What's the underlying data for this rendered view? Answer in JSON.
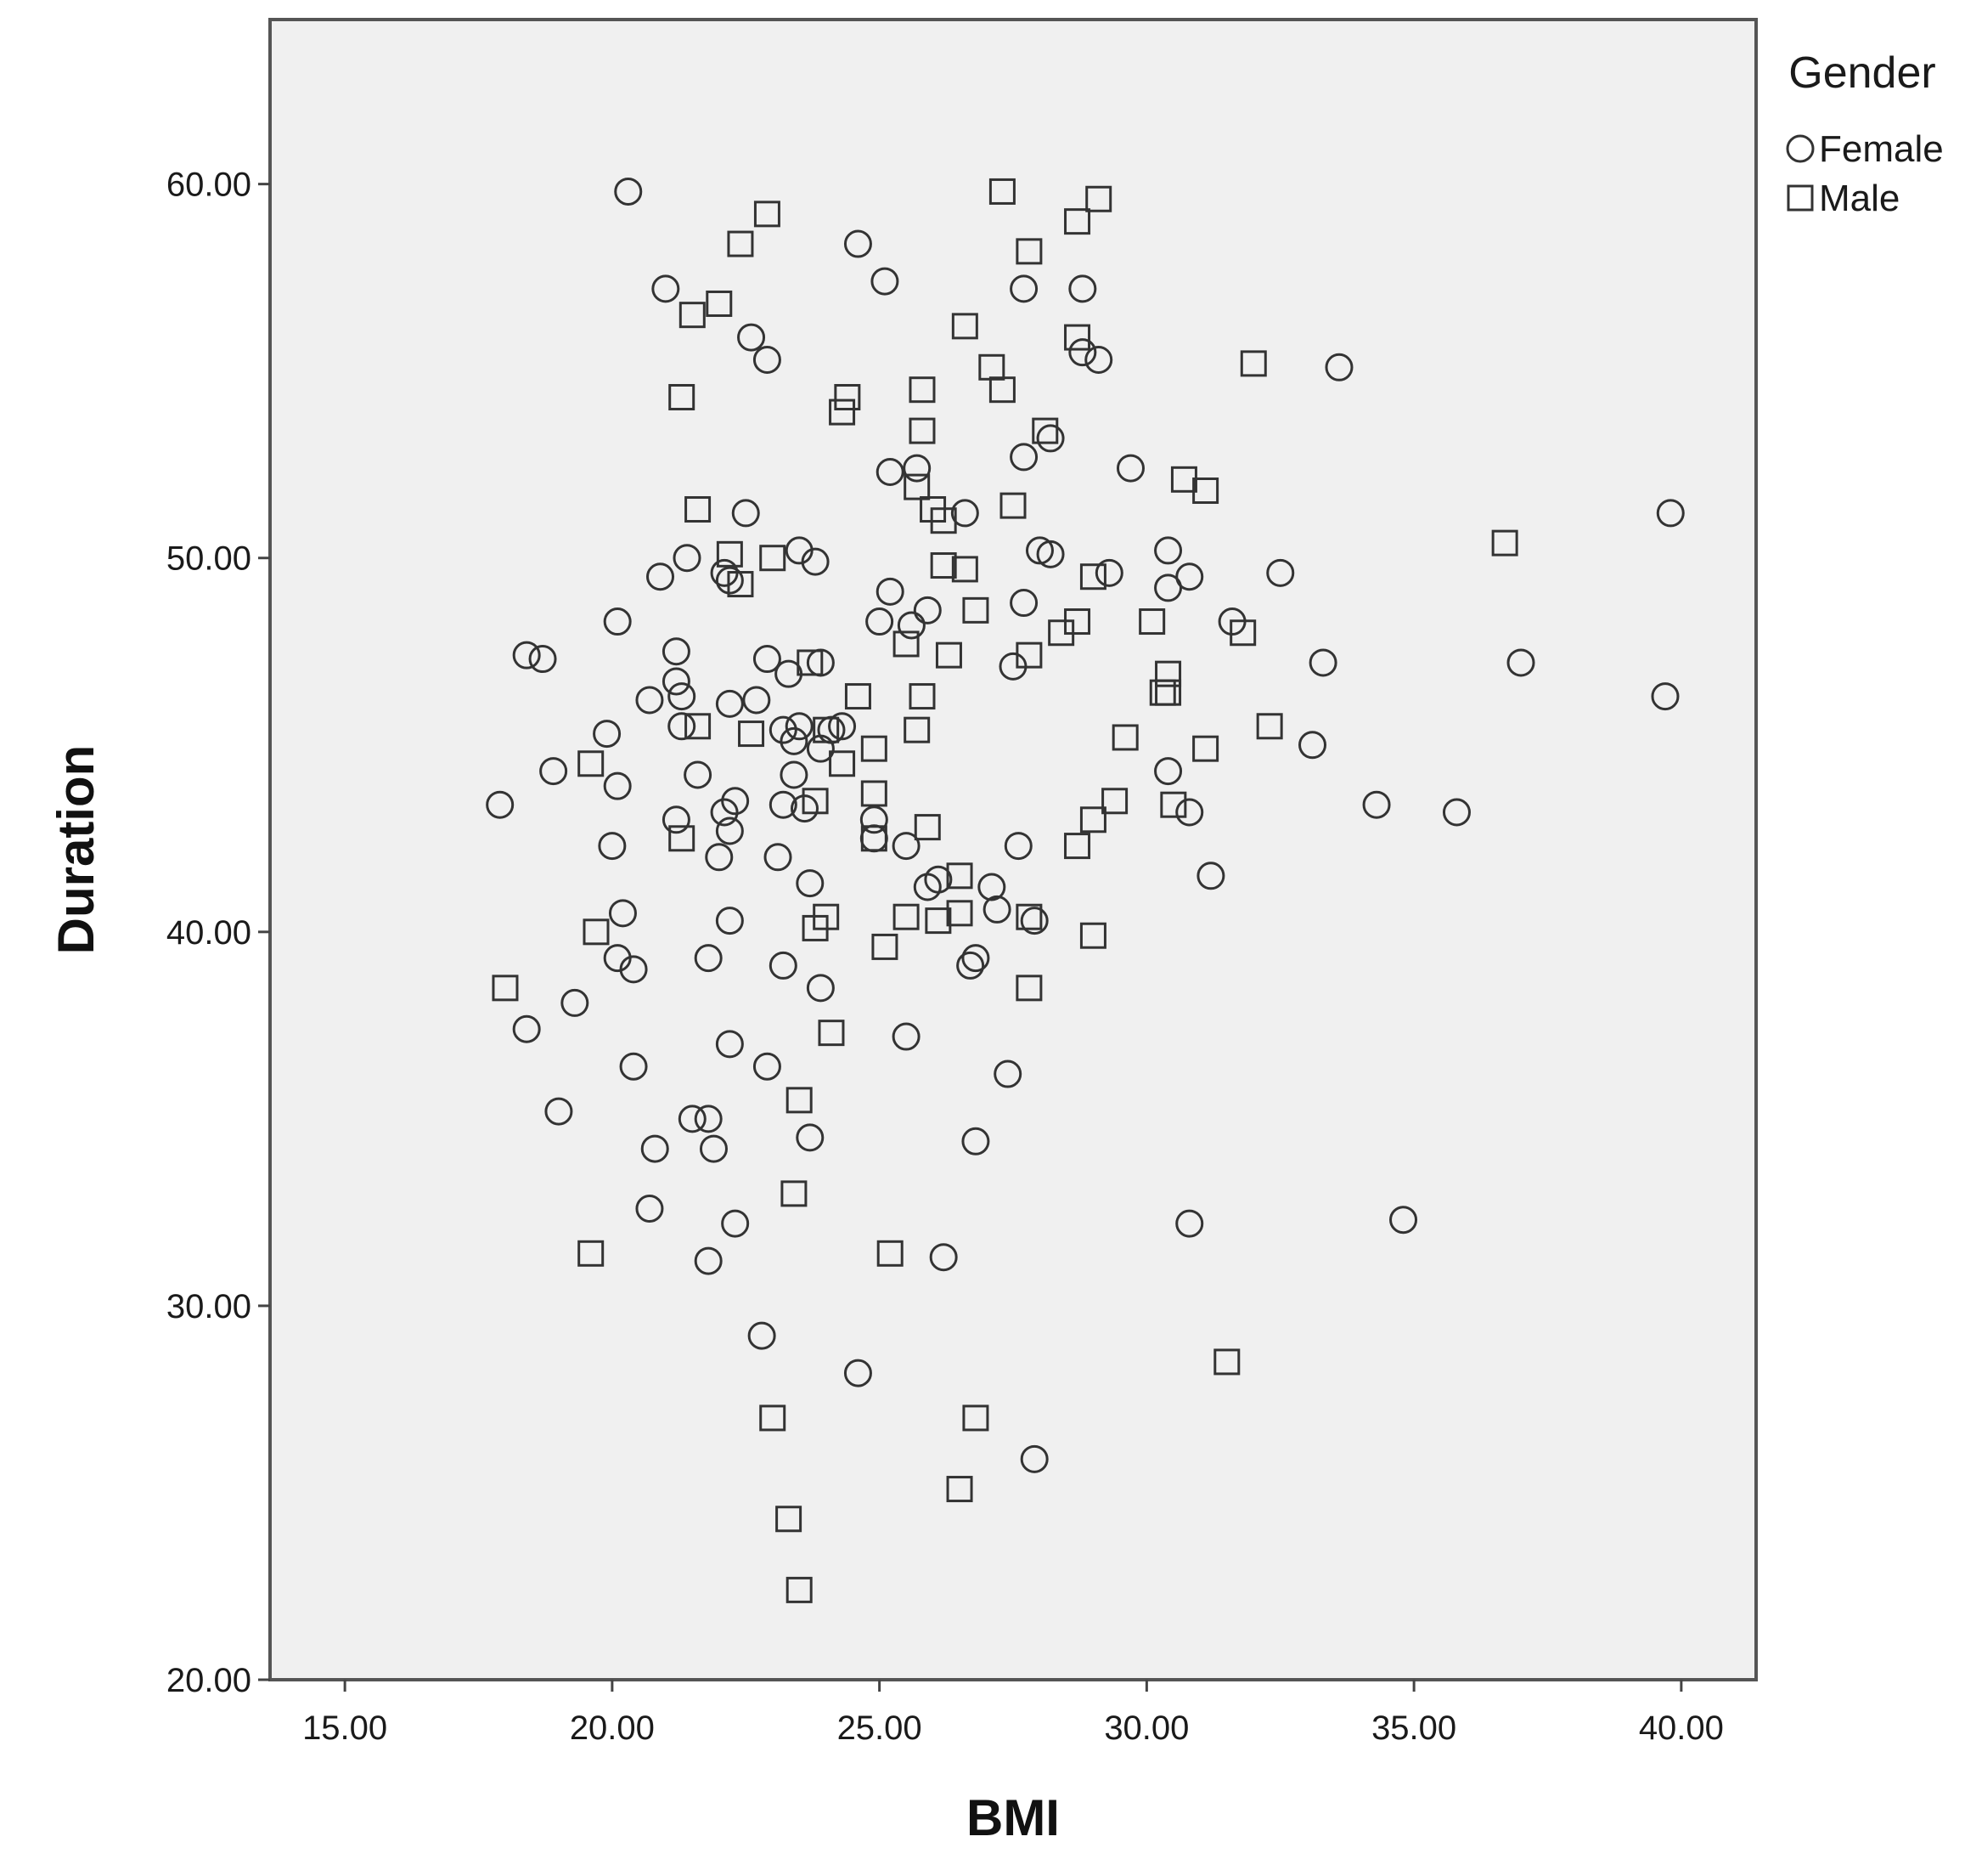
{
  "chart_data": {
    "type": "scatter",
    "title": "",
    "xlabel": "BMI",
    "ylabel": "Duration",
    "xlim": [
      13.6,
      41.4
    ],
    "ylim": [
      20,
      64.4
    ],
    "x_ticks": [
      "15.00",
      "20.00",
      "25.00",
      "30.00",
      "35.00",
      "40.00"
    ],
    "y_ticks": [
      "20.00",
      "30.00",
      "40.00",
      "50.00",
      "60.00"
    ],
    "grid": false,
    "background_color": "#f0f0f0",
    "marker_color": "#333333",
    "legend": {
      "title": "Gender",
      "placement": "top-right outside"
    },
    "series": [
      {
        "name": "Female",
        "marker": "circle",
        "points": [
          [
            20.3,
            59.8
          ],
          [
            24.6,
            58.4
          ],
          [
            25.1,
            57.4
          ],
          [
            21.0,
            57.2
          ],
          [
            27.7,
            57.2
          ],
          [
            28.8,
            57.2
          ],
          [
            22.6,
            55.9
          ],
          [
            22.9,
            55.3
          ],
          [
            28.8,
            55.5
          ],
          [
            29.1,
            55.3
          ],
          [
            33.6,
            55.1
          ],
          [
            25.2,
            52.3
          ],
          [
            25.7,
            52.4
          ],
          [
            27.7,
            52.7
          ],
          [
            29.7,
            52.4
          ],
          [
            28.2,
            53.2
          ],
          [
            22.5,
            51.2
          ],
          [
            26.6,
            51.2
          ],
          [
            39.8,
            51.2
          ],
          [
            21.4,
            50.0
          ],
          [
            23.5,
            50.2
          ],
          [
            23.8,
            49.9
          ],
          [
            20.9,
            49.5
          ],
          [
            22.1,
            49.6
          ],
          [
            22.2,
            49.4
          ],
          [
            28.0,
            50.2
          ],
          [
            28.2,
            50.1
          ],
          [
            30.4,
            50.2
          ],
          [
            29.3,
            49.6
          ],
          [
            32.5,
            49.6
          ],
          [
            30.8,
            49.5
          ],
          [
            25.2,
            49.1
          ],
          [
            30.4,
            49.2
          ],
          [
            27.7,
            48.8
          ],
          [
            25.9,
            48.6
          ],
          [
            25.0,
            48.3
          ],
          [
            25.6,
            48.2
          ],
          [
            20.1,
            48.3
          ],
          [
            31.6,
            48.3
          ],
          [
            27.5,
            47.1
          ],
          [
            18.4,
            47.4
          ],
          [
            18.7,
            47.3
          ],
          [
            21.2,
            47.5
          ],
          [
            22.9,
            47.3
          ],
          [
            23.9,
            47.2
          ],
          [
            23.3,
            46.9
          ],
          [
            33.3,
            47.2
          ],
          [
            37.0,
            47.2
          ],
          [
            21.2,
            46.7
          ],
          [
            20.7,
            46.2
          ],
          [
            21.3,
            46.3
          ],
          [
            22.2,
            46.1
          ],
          [
            22.7,
            46.2
          ],
          [
            39.7,
            46.3
          ],
          [
            19.9,
            45.3
          ],
          [
            21.3,
            45.5
          ],
          [
            23.2,
            45.4
          ],
          [
            23.5,
            45.5
          ],
          [
            24.1,
            45.4
          ],
          [
            24.3,
            45.5
          ],
          [
            23.4,
            45.1
          ],
          [
            23.9,
            44.9
          ],
          [
            33.1,
            45.0
          ],
          [
            18.9,
            44.3
          ],
          [
            21.6,
            44.2
          ],
          [
            23.4,
            44.2
          ],
          [
            30.4,
            44.3
          ],
          [
            20.1,
            43.9
          ],
          [
            17.9,
            43.4
          ],
          [
            21.2,
            43.0
          ],
          [
            22.1,
            43.2
          ],
          [
            22.3,
            43.5
          ],
          [
            23.2,
            43.4
          ],
          [
            23.6,
            43.3
          ],
          [
            24.9,
            43.0
          ],
          [
            30.8,
            43.2
          ],
          [
            34.3,
            43.4
          ],
          [
            35.8,
            43.2
          ],
          [
            20.0,
            42.3
          ],
          [
            22.2,
            42.7
          ],
          [
            22.0,
            42.0
          ],
          [
            23.1,
            42.0
          ],
          [
            24.9,
            42.5
          ],
          [
            25.5,
            42.3
          ],
          [
            27.6,
            42.3
          ],
          [
            23.7,
            41.3
          ],
          [
            25.9,
            41.2
          ],
          [
            26.1,
            41.4
          ],
          [
            27.1,
            41.2
          ],
          [
            31.2,
            41.5
          ],
          [
            20.2,
            40.5
          ],
          [
            22.2,
            40.3
          ],
          [
            27.2,
            40.6
          ],
          [
            27.9,
            40.3
          ],
          [
            20.1,
            39.3
          ],
          [
            20.4,
            39.0
          ],
          [
            21.8,
            39.3
          ],
          [
            23.2,
            39.1
          ],
          [
            26.7,
            39.1
          ],
          [
            26.8,
            39.3
          ],
          [
            19.3,
            38.1
          ],
          [
            23.9,
            38.5
          ],
          [
            18.4,
            37.4
          ],
          [
            22.2,
            37.0
          ],
          [
            25.5,
            37.2
          ],
          [
            20.4,
            36.4
          ],
          [
            22.9,
            36.4
          ],
          [
            27.4,
            36.2
          ],
          [
            19.0,
            35.2
          ],
          [
            21.5,
            35.0
          ],
          [
            21.8,
            35.0
          ],
          [
            20.8,
            34.2
          ],
          [
            21.9,
            34.2
          ],
          [
            23.7,
            34.5
          ],
          [
            26.8,
            34.4
          ],
          [
            20.7,
            32.6
          ],
          [
            22.3,
            32.2
          ],
          [
            30.8,
            32.2
          ],
          [
            34.8,
            32.3
          ],
          [
            21.8,
            31.2
          ],
          [
            26.2,
            31.3
          ],
          [
            22.8,
            29.2
          ],
          [
            24.6,
            28.2
          ],
          [
            27.9,
            25.9
          ]
        ]
      },
      {
        "name": "Male",
        "marker": "square",
        "points": [
          [
            27.3,
            59.8
          ],
          [
            29.1,
            59.6
          ],
          [
            22.9,
            59.2
          ],
          [
            28.7,
            59.0
          ],
          [
            22.4,
            58.4
          ],
          [
            27.8,
            58.2
          ],
          [
            22.0,
            56.8
          ],
          [
            21.5,
            56.5
          ],
          [
            26.6,
            56.2
          ],
          [
            28.7,
            55.9
          ],
          [
            32.0,
            55.2
          ],
          [
            27.1,
            55.1
          ],
          [
            25.8,
            54.5
          ],
          [
            27.3,
            54.5
          ],
          [
            21.3,
            54.3
          ],
          [
            24.4,
            54.3
          ],
          [
            24.3,
            53.9
          ],
          [
            25.8,
            53.4
          ],
          [
            28.1,
            53.4
          ],
          [
            30.7,
            52.1
          ],
          [
            31.1,
            51.8
          ],
          [
            25.7,
            51.9
          ],
          [
            21.6,
            51.3
          ],
          [
            26.0,
            51.3
          ],
          [
            27.5,
            51.4
          ],
          [
            26.2,
            51.0
          ],
          [
            36.7,
            50.4
          ],
          [
            22.2,
            50.1
          ],
          [
            23.0,
            50.0
          ],
          [
            26.2,
            49.8
          ],
          [
            26.6,
            49.7
          ],
          [
            29.0,
            49.5
          ],
          [
            22.4,
            49.3
          ],
          [
            26.8,
            48.6
          ],
          [
            28.7,
            48.3
          ],
          [
            30.1,
            48.3
          ],
          [
            31.8,
            48.0
          ],
          [
            28.4,
            48.0
          ],
          [
            25.5,
            47.7
          ],
          [
            27.8,
            47.4
          ],
          [
            26.3,
            47.4
          ],
          [
            23.7,
            47.2
          ],
          [
            30.4,
            46.9
          ],
          [
            30.3,
            46.4
          ],
          [
            30.4,
            46.4
          ],
          [
            24.6,
            46.3
          ],
          [
            25.8,
            46.3
          ],
          [
            21.6,
            45.5
          ],
          [
            22.6,
            45.3
          ],
          [
            25.7,
            45.4
          ],
          [
            29.6,
            45.2
          ],
          [
            32.3,
            45.5
          ],
          [
            24.0,
            45.4
          ],
          [
            24.9,
            44.9
          ],
          [
            31.1,
            44.9
          ],
          [
            19.6,
            44.5
          ],
          [
            24.3,
            44.5
          ],
          [
            24.9,
            43.7
          ],
          [
            23.8,
            43.5
          ],
          [
            29.4,
            43.5
          ],
          [
            30.5,
            43.4
          ],
          [
            29.0,
            43.0
          ],
          [
            25.9,
            42.8
          ],
          [
            21.3,
            42.5
          ],
          [
            28.7,
            42.3
          ],
          [
            24.9,
            42.5
          ],
          [
            26.5,
            41.5
          ],
          [
            24.0,
            40.4
          ],
          [
            25.5,
            40.4
          ],
          [
            26.1,
            40.3
          ],
          [
            26.5,
            40.5
          ],
          [
            27.8,
            40.4
          ],
          [
            23.8,
            40.1
          ],
          [
            19.7,
            40.0
          ],
          [
            29.0,
            39.9
          ],
          [
            25.1,
            39.6
          ],
          [
            18.0,
            38.5
          ],
          [
            27.8,
            38.5
          ],
          [
            24.1,
            37.3
          ],
          [
            23.5,
            35.5
          ],
          [
            23.4,
            33.0
          ],
          [
            19.6,
            31.4
          ],
          [
            25.2,
            31.4
          ],
          [
            31.5,
            28.5
          ],
          [
            23.0,
            27.0
          ],
          [
            26.8,
            27.0
          ],
          [
            26.5,
            25.1
          ],
          [
            23.3,
            24.3
          ],
          [
            23.5,
            22.4
          ]
        ]
      }
    ]
  }
}
